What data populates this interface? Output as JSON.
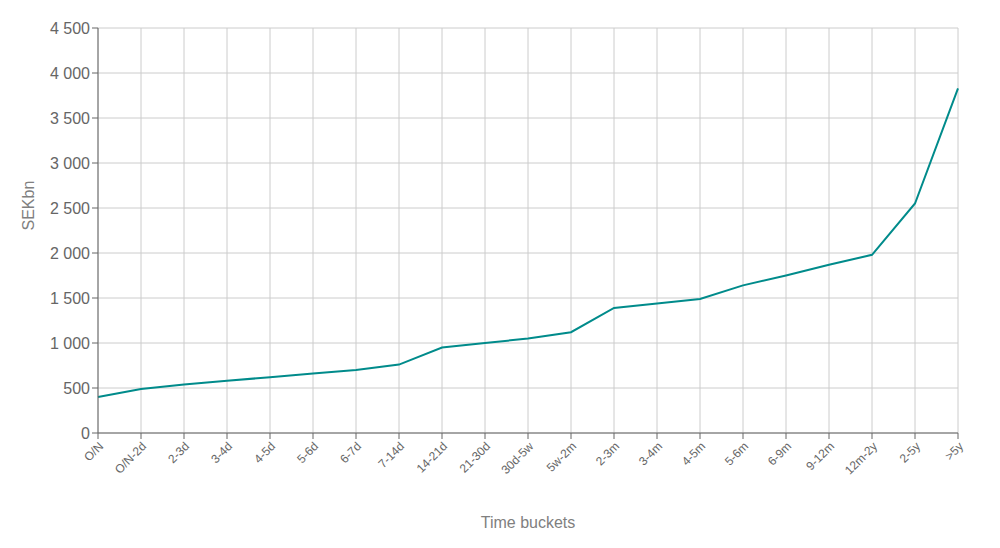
{
  "chart_data": {
    "type": "line",
    "xlabel": "Time buckets",
    "ylabel": "SEKbn",
    "categories": [
      "O/N",
      "O/N-2d",
      "2-3d",
      "3-4d",
      "4-5d",
      "5-6d",
      "6-7d",
      "7-14d",
      "14-21d",
      "21-30d",
      "30d-5w",
      "5w-2m",
      "2-3m",
      "3-4m",
      "4-5m",
      "5-6m",
      "6-9m",
      "9-12m",
      "12m-2y",
      "2-5y",
      ">5y"
    ],
    "values": [
      400,
      490,
      540,
      580,
      620,
      660,
      700,
      760,
      950,
      1000,
      1050,
      1120,
      1390,
      1440,
      1490,
      1640,
      1750,
      1870,
      1980,
      2550,
      3830
    ],
    "color": "#008B8B",
    "ylim": [
      0,
      4500
    ],
    "yticks": [
      0,
      500,
      {
        "value": 1000,
        "label": "1 000"
      },
      {
        "value": 1500,
        "label": "1 500"
      },
      {
        "value": 2000,
        "label": "2 000"
      },
      {
        "value": 2500,
        "label": "2 500"
      },
      {
        "value": 3000,
        "label": "3 000"
      },
      {
        "value": 3500,
        "label": "3 500"
      },
      {
        "value": 4000,
        "label": "4 000"
      },
      {
        "value": 4500,
        "label": "4 500"
      }
    ],
    "grid": true
  }
}
